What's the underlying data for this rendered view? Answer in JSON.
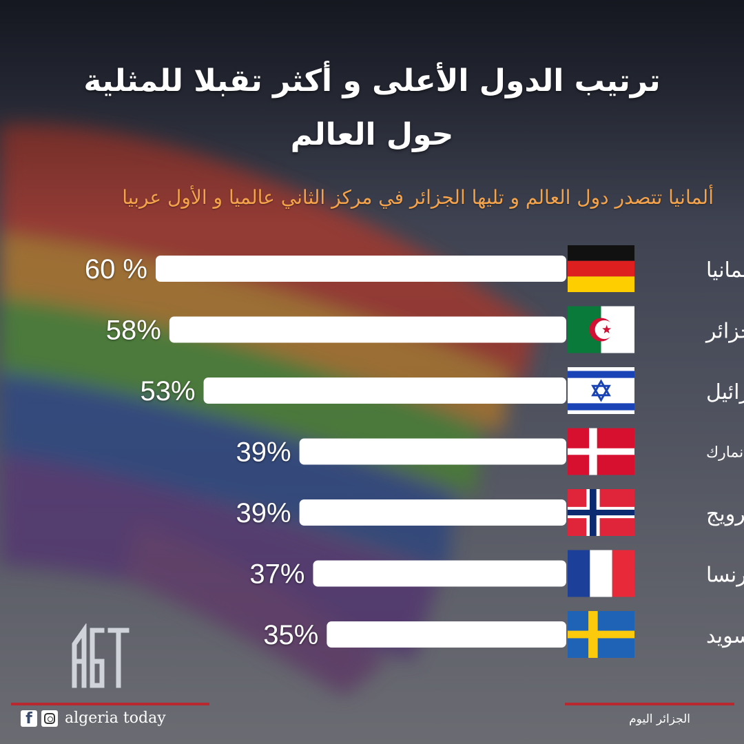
{
  "title_line1": "ترتيب الدول الأعلى و أكثر تقبلا للمثلية",
  "title_line2": "حول العالم",
  "subtitle": "ألمانيا تتصدر دول العالم و تليها الجزائر في مركز الثاني عالميا و الأول عربيا",
  "chart_data": {
    "type": "bar",
    "orientation": "horizontal",
    "categories": [
      "ألمانيا",
      "الجزائر",
      "إسرائيل",
      "الدانمارك",
      "النرويج",
      "فرنسا",
      "السويد"
    ],
    "values": [
      60,
      58,
      53,
      39,
      39,
      37,
      35
    ],
    "value_labels": [
      "60 %",
      "58%",
      "53%",
      "39%",
      "39%",
      "37%",
      "35%"
    ],
    "flags": [
      "germany-flag",
      "algeria-flag",
      "israel-flag",
      "denmark-flag",
      "norway-flag",
      "france-flag",
      "sweden-flag"
    ],
    "bar_color": "#ffffff"
  },
  "footer": {
    "brand": "algeria today",
    "brand_ar": "الجزائر اليوم",
    "logo_text": "AGT",
    "accent": "#b8282e"
  }
}
